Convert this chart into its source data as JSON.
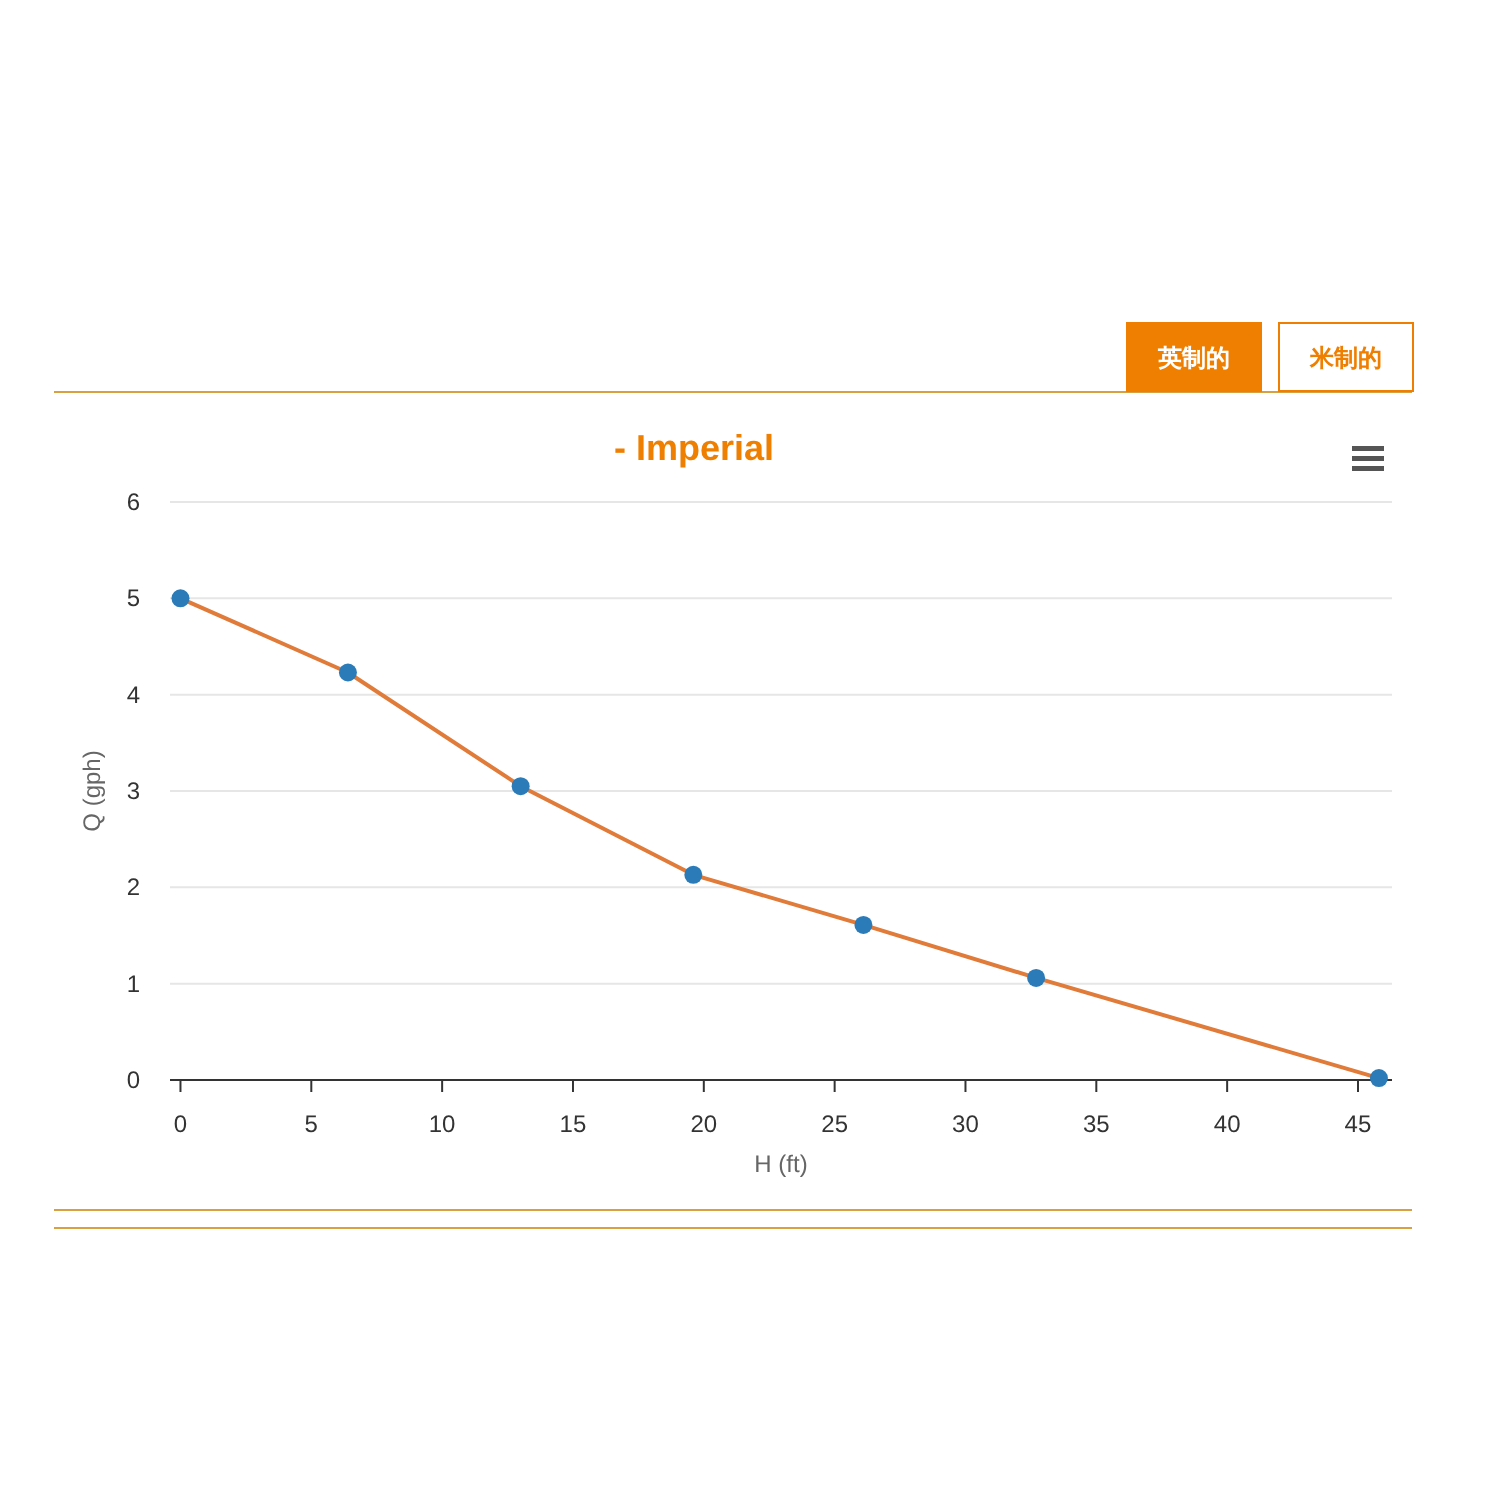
{
  "chart_data": {
    "type": "line",
    "title": "- Imperial",
    "xlabel": "H (ft)",
    "ylabel": "Q (gph)",
    "x": [
      0,
      6.4,
      13.0,
      19.6,
      26.1,
      32.7,
      45.8
    ],
    "series": [
      {
        "color": "#e07b39",
        "values": [
          5,
          4.23,
          3.05,
          2.13,
          1.61,
          1.06,
          0.02
        ]
      }
    ],
    "xlim": [
      -0.4,
      46.3
    ],
    "xticks": [
      0,
      5,
      10,
      15,
      20,
      25,
      30,
      35,
      40,
      45
    ],
    "ylim": [
      0,
      6
    ],
    "yticks": [
      0,
      1,
      2,
      3,
      4,
      5,
      6
    ],
    "grid": "y",
    "marker": "circle",
    "line_style": "solid",
    "annotations": [
      "英制的",
      "米制的"
    ]
  }
}
